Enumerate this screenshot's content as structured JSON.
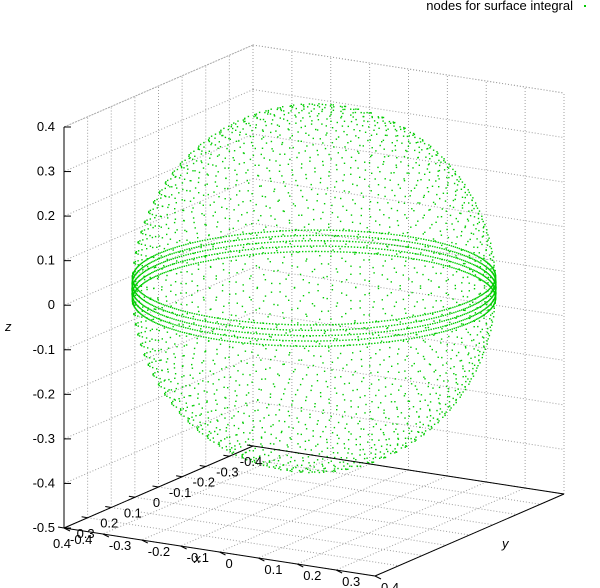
{
  "chart_data": {
    "type": "scatter",
    "plot_style": "3d-points",
    "legend": {
      "label": "nodes for surface integral",
      "placement": "top-right"
    },
    "xlabel": "x",
    "ylabel": "y",
    "zlabel": "z",
    "xlim": [
      -0.4,
      0.4
    ],
    "ylim": [
      -0.4,
      0.4
    ],
    "zlim": [
      -0.5,
      0.4
    ],
    "x_ticks": [
      "-0.4",
      "-0.3",
      "-0.2",
      "-0.1",
      "0",
      "0.1",
      "0.2",
      "0.3",
      "0.4"
    ],
    "y_ticks": [
      "-0.4",
      "-0.3",
      "-0.2",
      "-0.1",
      "0",
      "0.1",
      "0.2",
      "0.3",
      "0.4"
    ],
    "z_ticks": [
      "-0.5",
      "-0.4",
      "-0.3",
      "-0.2",
      "-0.1",
      "0",
      "0.1",
      "0.2",
      "0.3",
      "0.4"
    ],
    "grid": true,
    "series": [
      {
        "name": "nodes for surface integral",
        "color": "#00cc00",
        "shape": "sphere",
        "center": [
          0,
          0,
          0
        ],
        "radius": 0.4
      }
    ]
  }
}
